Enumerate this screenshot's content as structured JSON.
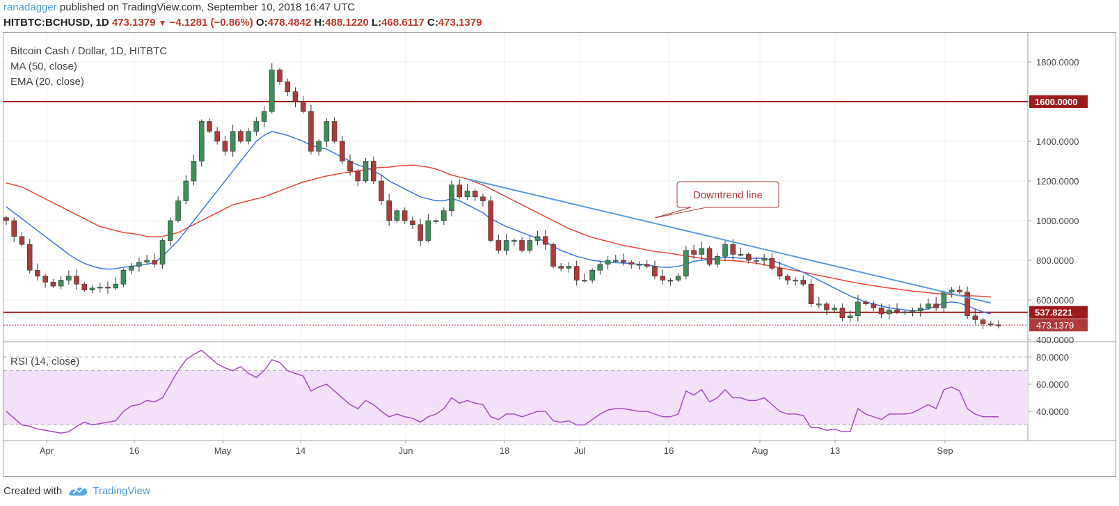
{
  "header": {
    "user": "ranadagger",
    "published": "published on TradingView.com, September 10, 2018 16:47 UTC",
    "symbol": "HITBTC:BCHUSD, 1D",
    "last": "473.1379",
    "change": "−4.1281 (−0.86%)",
    "o_label": "O:",
    "o": "478.4842",
    "h_label": "H:",
    "h": "488.1220",
    "l_label": "L:",
    "l": "468.6117",
    "c_label": "C:",
    "c": "473.1379"
  },
  "legend": {
    "title": "Bitcoin Cash / Dollar, 1D, HITBTC",
    "ma": "MA (50, close)",
    "ema": "EMA (20, close)",
    "rsi": "RSI (14, close)"
  },
  "annotation": {
    "text": "Downtrend line"
  },
  "footer": {
    "created": "Created with",
    "brand": "TradingView"
  },
  "colors": {
    "up": "#3e8e5a",
    "down": "#b03a3a",
    "ma": "#e8453c",
    "ema": "#3c78e0",
    "trend": "#5b9be0",
    "hline": "#9e1b1b",
    "rsi": "#a64bc4",
    "rsi_band": "#f3e1fa"
  },
  "chart_data": {
    "type": "candlestick",
    "title": "Bitcoin Cash / Dollar, 1D, HITBTC",
    "ylim": [
      400,
      1900
    ],
    "y_ticks": [
      "1800.0000",
      "1600.0000",
      "1400.0000",
      "1200.0000",
      "1000.0000",
      "800.0000",
      "600.0000",
      "400.0000"
    ],
    "x_labels": [
      "Apr",
      "16",
      "May",
      "14",
      "Jun",
      "18",
      "Jul",
      "16",
      "Aug",
      "13",
      "Sep"
    ],
    "horizontal_levels": [
      {
        "value": 1600,
        "label": "1600.0000"
      },
      {
        "value": 537.8221,
        "label": "537.8221"
      }
    ],
    "last_price": {
      "value": 473.1379,
      "label": "473.1379"
    },
    "closes": [
      1000,
      920,
      880,
      750,
      720,
      690,
      670,
      700,
      720,
      680,
      650,
      660,
      665,
      660,
      680,
      750,
      770,
      790,
      800,
      780,
      900,
      1000,
      1100,
      1200,
      1300,
      1500,
      1450,
      1400,
      1350,
      1450,
      1400,
      1450,
      1500,
      1550,
      1760,
      1700,
      1650,
      1600,
      1550,
      1350,
      1400,
      1500,
      1400,
      1300,
      1250,
      1200,
      1300,
      1200,
      1100,
      1000,
      1050,
      1000,
      980,
      900,
      1000,
      1000,
      1050,
      1180,
      1120,
      1150,
      1120,
      1100,
      900,
      850,
      900,
      900,
      850,
      900,
      920,
      880,
      770,
      760,
      770,
      700,
      700,
      750,
      780,
      800,
      800,
      790,
      780,
      780,
      770,
      720,
      700,
      700,
      720,
      850,
      830,
      860,
      780,
      820,
      880,
      830,
      830,
      800,
      800,
      810,
      760,
      720,
      700,
      700,
      680,
      580,
      580,
      550,
      560,
      510,
      520,
      590,
      580,
      560,
      530,
      550,
      540,
      540,
      545,
      560,
      580,
      560,
      640,
      650,
      640,
      520,
      500,
      480,
      475,
      473
    ],
    "ma50": [
      1190,
      1180,
      1170,
      1150,
      1130,
      1110,
      1090,
      1070,
      1050,
      1030,
      1010,
      990,
      970,
      960,
      950,
      940,
      935,
      930,
      920,
      918,
      920,
      930,
      940,
      960,
      980,
      1000,
      1020,
      1040,
      1060,
      1080,
      1090,
      1100,
      1110,
      1120,
      1135,
      1150,
      1165,
      1180,
      1195,
      1205,
      1215,
      1225,
      1232,
      1240,
      1245,
      1250,
      1258,
      1265,
      1268,
      1270,
      1275,
      1278,
      1280,
      1275,
      1270,
      1260,
      1245,
      1230,
      1220,
      1210,
      1195,
      1180,
      1160,
      1140,
      1120,
      1100,
      1080,
      1060,
      1040,
      1020,
      1000,
      980,
      960,
      945,
      930,
      915,
      905,
      895,
      885,
      875,
      868,
      860,
      852,
      845,
      840,
      835,
      828,
      822,
      816,
      810,
      806,
      802,
      800,
      798,
      795,
      790,
      785,
      778,
      770,
      762,
      755,
      748,
      740,
      732,
      724,
      716,
      708,
      700,
      692,
      685,
      678,
      672,
      666,
      660,
      655,
      650,
      645,
      641,
      637,
      633,
      630,
      627,
      624,
      622,
      620,
      618,
      615
    ],
    "ema20": [
      1070,
      1040,
      1010,
      980,
      950,
      920,
      890,
      860,
      830,
      805,
      785,
      770,
      760,
      755,
      758,
      765,
      770,
      775,
      780,
      790,
      820,
      860,
      900,
      950,
      1000,
      1050,
      1100,
      1150,
      1200,
      1250,
      1300,
      1350,
      1400,
      1430,
      1450,
      1440,
      1430,
      1415,
      1400,
      1380,
      1370,
      1360,
      1340,
      1320,
      1300,
      1280,
      1270,
      1250,
      1230,
      1200,
      1180,
      1160,
      1140,
      1120,
      1110,
      1100,
      1100,
      1110,
      1100,
      1080,
      1060,
      1040,
      1010,
      990,
      970,
      955,
      940,
      925,
      910,
      895,
      870,
      850,
      835,
      820,
      810,
      800,
      795,
      790,
      788,
      786,
      784,
      780,
      777,
      770,
      765,
      765,
      770,
      780,
      795,
      800,
      805,
      810,
      815,
      815,
      810,
      810,
      810,
      810,
      800,
      785,
      770,
      755,
      740,
      720,
      700,
      680,
      660,
      640,
      620,
      605,
      590,
      580,
      570,
      560,
      555,
      550,
      545,
      550,
      555,
      570,
      585,
      590,
      585,
      570,
      555,
      540,
      530
    ],
    "trendline": {
      "from": {
        "index": 59,
        "value": 1210
      },
      "to": {
        "index": 126,
        "value": 585
      }
    },
    "rsi": {
      "ylim": [
        20,
        90
      ],
      "y_ticks": [
        "80.0000",
        "60.0000",
        "40.0000"
      ],
      "band": [
        30,
        70
      ],
      "values": [
        40,
        35,
        30,
        29,
        27,
        26,
        25,
        24,
        25,
        29,
        32,
        30,
        31,
        32,
        33,
        40,
        44,
        45,
        48,
        47,
        50,
        60,
        70,
        78,
        82,
        85,
        80,
        75,
        72,
        70,
        73,
        68,
        65,
        70,
        78,
        76,
        70,
        68,
        66,
        55,
        58,
        60,
        55,
        50,
        45,
        42,
        48,
        45,
        40,
        36,
        38,
        36,
        35,
        32,
        36,
        38,
        42,
        50,
        46,
        48,
        46,
        45,
        36,
        34,
        38,
        38,
        36,
        38,
        40,
        40,
        33,
        32,
        33,
        30,
        30,
        34,
        38,
        41,
        42,
        42,
        41,
        40,
        40,
        38,
        36,
        36,
        38,
        55,
        52,
        56,
        47,
        50,
        56,
        50,
        50,
        48,
        48,
        50,
        45,
        40,
        38,
        38,
        37,
        28,
        28,
        26,
        27,
        25,
        25,
        42,
        38,
        36,
        34,
        38,
        38,
        38,
        39,
        42,
        45,
        42,
        56,
        58,
        55,
        42,
        38,
        36,
        36,
        36
      ]
    }
  }
}
